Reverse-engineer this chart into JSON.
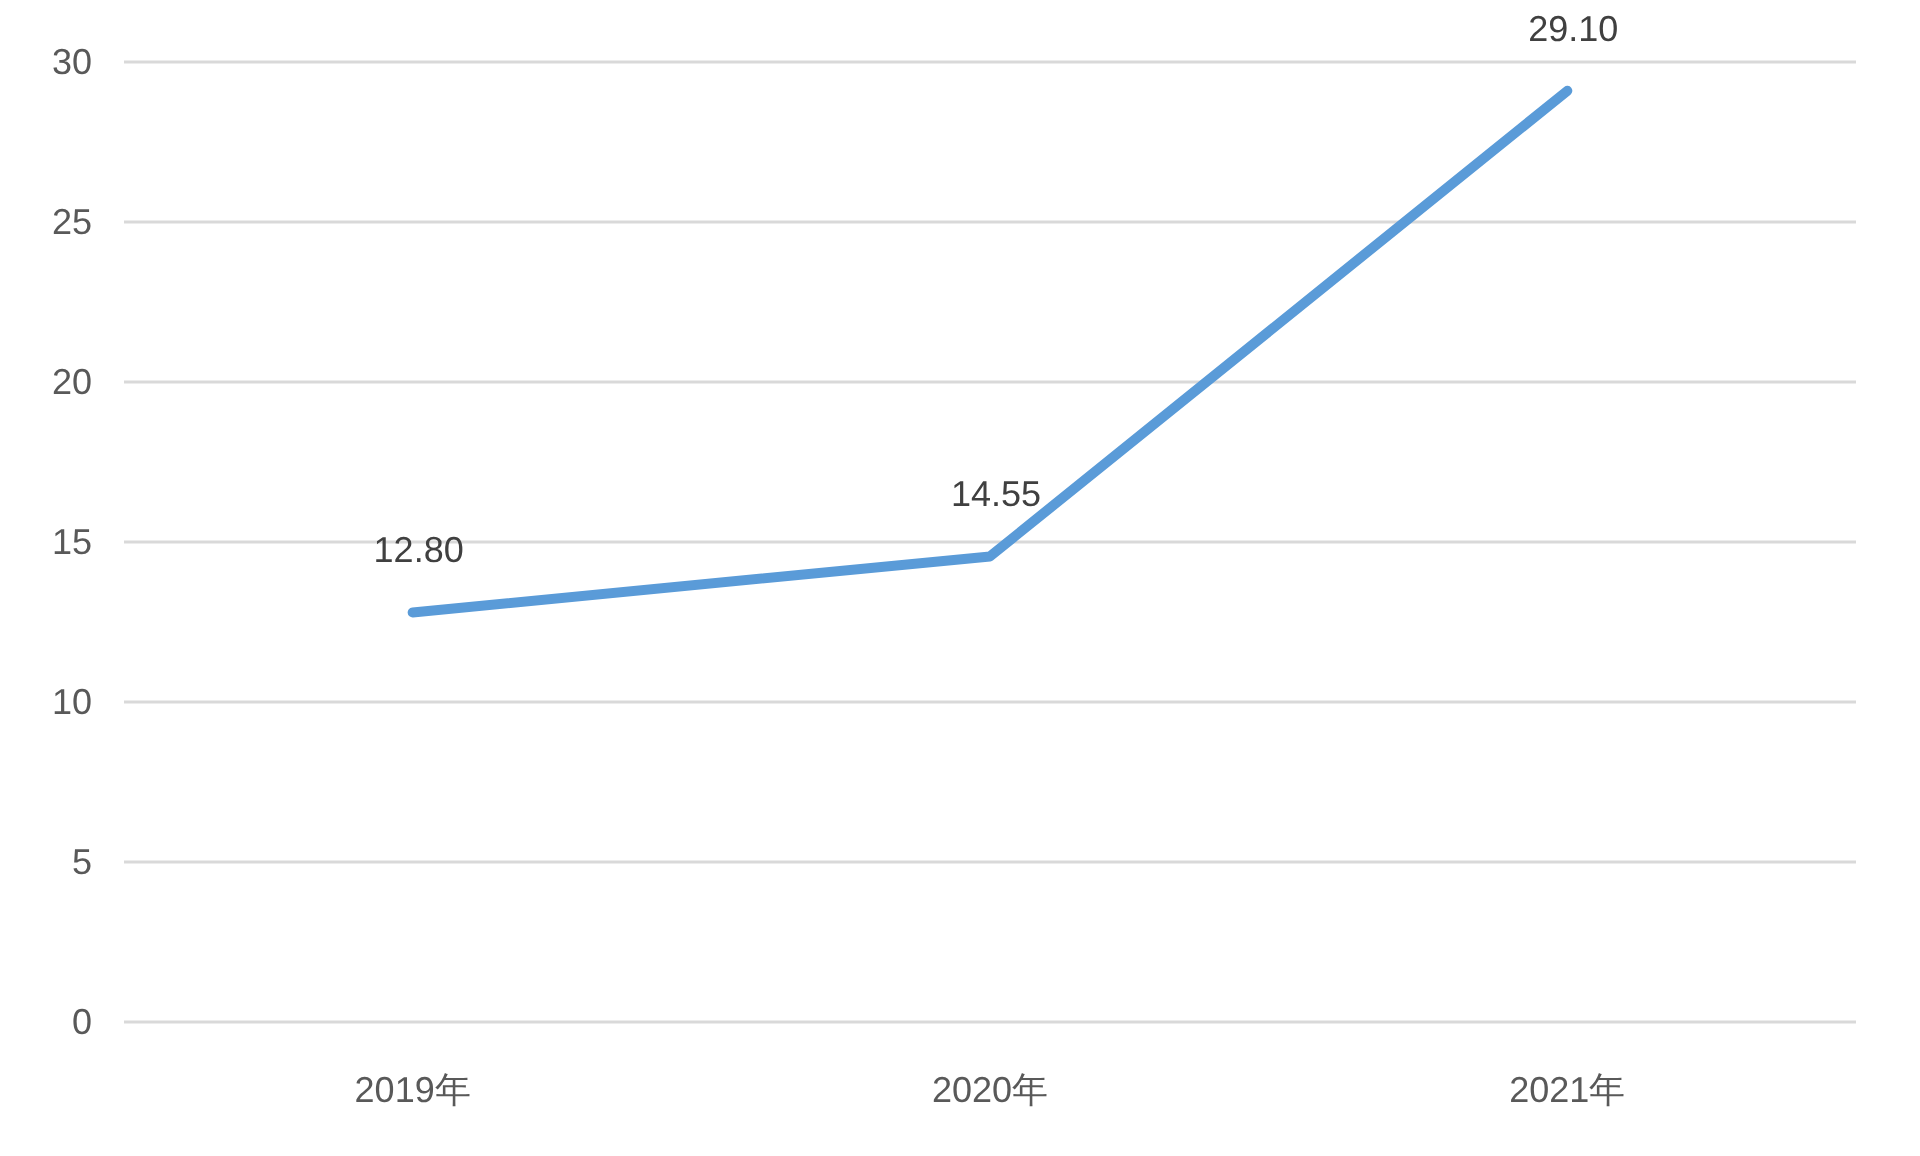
{
  "chart_data": {
    "type": "line",
    "categories": [
      "2019年",
      "2020年",
      "2021年"
    ],
    "series": [
      {
        "color": "#5a9bd8",
        "values": [
          12.8,
          14.55,
          29.1
        ],
        "value_labels": [
          "12.80",
          "14.55",
          "29.10"
        ]
      }
    ],
    "ylim": [
      0,
      30
    ],
    "yticks": [
      0,
      5,
      10,
      15,
      20,
      25,
      30
    ],
    "grid": "y",
    "marker": "none",
    "line_style": "solid"
  }
}
